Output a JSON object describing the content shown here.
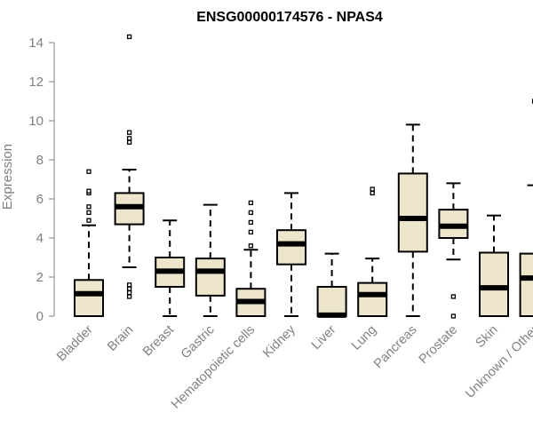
{
  "chart_data": {
    "type": "boxplot",
    "title": "ENSG00000174576 - NPAS4",
    "xlabel": "",
    "ylabel": "Expression",
    "ylim": [
      0,
      14
    ],
    "yticks": [
      0,
      2,
      4,
      6,
      8,
      10,
      12,
      14
    ],
    "ytick_labels": [
      "0",
      "2",
      "4",
      "6",
      "8",
      "10",
      "12",
      "14"
    ],
    "grid": false,
    "box_fill": "#ede6cc",
    "colors": {
      "box_fill": "#ede6cc",
      "box_stroke": "#000000",
      "axis": "#808080",
      "label": "#808080"
    },
    "categories": [
      "Bladder",
      "Brain",
      "Breast",
      "Gastric",
      "Hematopoietic cells",
      "Kidney",
      "Liver",
      "Lung",
      "Pancreas",
      "Prostate",
      "Skin",
      "Unknown / Other"
    ],
    "boxes": [
      {
        "category": "Bladder",
        "whisker_low": 0,
        "q1": 0,
        "median": 1.15,
        "q3": 1.85,
        "whisker_high": 4.65,
        "outliers": [
          4.9,
          5.3,
          5.6,
          6.3,
          6.4,
          7.4
        ]
      },
      {
        "category": "Brain",
        "whisker_low": 2.5,
        "q1": 4.7,
        "median": 5.6,
        "q3": 6.3,
        "whisker_high": 7.5,
        "outliers": [
          1.0,
          1.2,
          1.4,
          1.6,
          8.9,
          9.1,
          9.4,
          14.3
        ]
      },
      {
        "category": "Breast",
        "whisker_low": 0,
        "q1": 1.5,
        "median": 2.3,
        "q3": 3.0,
        "whisker_high": 4.9,
        "outliers": []
      },
      {
        "category": "Gastric",
        "whisker_low": 0,
        "q1": 1.05,
        "median": 2.3,
        "q3": 2.95,
        "whisker_high": 5.7,
        "outliers": []
      },
      {
        "category": "Hematopoietic cells",
        "whisker_low": 0,
        "q1": 0,
        "median": 0.75,
        "q3": 1.4,
        "whisker_high": 3.4,
        "outliers": [
          3.6,
          4.3,
          4.8,
          5.3,
          5.8
        ]
      },
      {
        "category": "Kidney",
        "whisker_low": 0,
        "q1": 2.65,
        "median": 3.7,
        "q3": 4.4,
        "whisker_high": 6.3,
        "outliers": []
      },
      {
        "category": "Liver",
        "whisker_low": 0,
        "q1": 0,
        "median": 0.05,
        "q3": 1.5,
        "whisker_high": 3.2,
        "outliers": []
      },
      {
        "category": "Lung",
        "whisker_low": 0,
        "q1": 0,
        "median": 1.1,
        "q3": 1.7,
        "whisker_high": 2.95,
        "outliers": [
          6.3,
          6.5
        ]
      },
      {
        "category": "Pancreas",
        "whisker_low": 0,
        "q1": 3.3,
        "median": 5.0,
        "q3": 7.3,
        "whisker_high": 9.8,
        "outliers": []
      },
      {
        "category": "Prostate",
        "whisker_low": 2.9,
        "q1": 4.0,
        "median": 4.6,
        "q3": 5.45,
        "whisker_high": 6.8,
        "outliers": [
          0,
          1.0
        ]
      },
      {
        "category": "Skin",
        "whisker_low": 0,
        "q1": 0,
        "median": 1.45,
        "q3": 3.25,
        "whisker_high": 5.15,
        "outliers": []
      },
      {
        "category": "Unknown / Other",
        "whisker_low": 0,
        "q1": 0,
        "median": 1.95,
        "q3": 3.2,
        "whisker_high": 6.7,
        "outliers": [
          11.0
        ]
      }
    ]
  }
}
